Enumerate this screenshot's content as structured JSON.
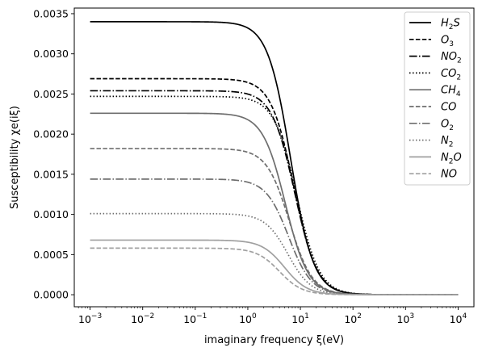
{
  "chart_data": {
    "type": "line",
    "xlabel": "imaginary frequency ξ(eV)",
    "ylabel": "Susceptibility χe(iξ)",
    "xscale": "log",
    "xlim": [
      0.0005,
      20000
    ],
    "ylim": [
      -0.00015,
      0.00357
    ],
    "grid": false,
    "legend_position": "top-right",
    "x_ticks": [
      {
        "value": 0.001,
        "base": "10",
        "exp": "−3"
      },
      {
        "value": 0.01,
        "base": "10",
        "exp": "−2"
      },
      {
        "value": 0.1,
        "base": "10",
        "exp": "−1"
      },
      {
        "value": 1,
        "base": "10",
        "exp": "0"
      },
      {
        "value": 10,
        "base": "10",
        "exp": "1"
      },
      {
        "value": 100,
        "base": "10",
        "exp": "2"
      },
      {
        "value": 1000,
        "base": "10",
        "exp": "3"
      },
      {
        "value": 10000,
        "base": "10",
        "exp": "4"
      }
    ],
    "y_ticks": [
      {
        "value": 0.0,
        "label": "0.0000"
      },
      {
        "value": 0.0005,
        "label": "0.0005"
      },
      {
        "value": 0.001,
        "label": "0.0010"
      },
      {
        "value": 0.0015,
        "label": "0.0015"
      },
      {
        "value": 0.002,
        "label": "0.0020"
      },
      {
        "value": 0.0025,
        "label": "0.0025"
      },
      {
        "value": 0.003,
        "label": "0.0030"
      },
      {
        "value": 0.0035,
        "label": "0.0035"
      }
    ],
    "x_range": [
      0.001,
      10000
    ],
    "series": [
      {
        "name": "H2S",
        "label_main": "H",
        "label_sub": "2",
        "label_rest": "S",
        "plateau": 0.0034,
        "omega": 6.5,
        "color": "#000000",
        "dash": "solid"
      },
      {
        "name": "O3",
        "label_main": "O",
        "label_sub": "3",
        "label_rest": "",
        "plateau": 0.00269,
        "omega": 7.5,
        "color": "#000000",
        "dash": "dashed"
      },
      {
        "name": "NO2",
        "label_main": "NO",
        "label_sub": "2",
        "label_rest": "",
        "plateau": 0.00254,
        "omega": 7.8,
        "color": "#000000",
        "dash": "dashdot"
      },
      {
        "name": "CO2",
        "label_main": "CO",
        "label_sub": "2",
        "label_rest": "",
        "plateau": 0.00247,
        "omega": 8.5,
        "color": "#000000",
        "dash": "dotted"
      },
      {
        "name": "CH4",
        "label_main": "CH",
        "label_sub": "4",
        "label_rest": "",
        "plateau": 0.00226,
        "omega": 5.2,
        "color": "#6e6e6e",
        "dash": "solid"
      },
      {
        "name": "CO",
        "label_main": "CO",
        "label_sub": "",
        "label_rest": "",
        "plateau": 0.00182,
        "omega": 6.2,
        "color": "#6e6e6e",
        "dash": "dashed"
      },
      {
        "name": "O2",
        "label_main": "O",
        "label_sub": "2",
        "label_rest": "",
        "plateau": 0.00144,
        "omega": 6.0,
        "color": "#6e6e6e",
        "dash": "dashdot"
      },
      {
        "name": "N2",
        "label_main": "N",
        "label_sub": "2",
        "label_rest": "",
        "plateau": 0.00101,
        "omega": 5.8,
        "color": "#6e6e6e",
        "dash": "dotted"
      },
      {
        "name": "N2O",
        "label_main": "N",
        "label_sub": "2",
        "label_rest": "O",
        "plateau": 0.00068,
        "omega": 5.0,
        "color": "#a0a0a0",
        "dash": "solid"
      },
      {
        "name": "NO",
        "label_main": "NO",
        "label_sub": "",
        "label_rest": "",
        "plateau": 0.00058,
        "omega": 4.0,
        "color": "#a0a0a0",
        "dash": "dashed"
      }
    ]
  }
}
